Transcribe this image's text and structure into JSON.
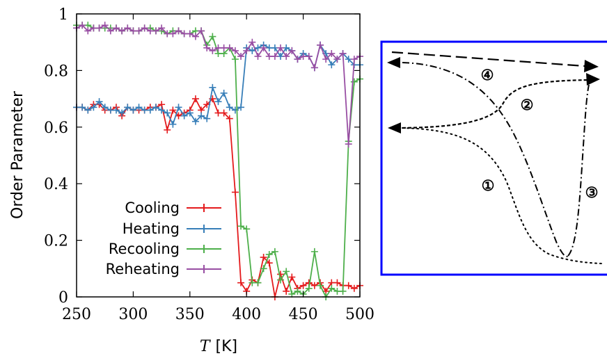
{
  "chart_data": {
    "type": "line",
    "xlabel_var": "T",
    "xlabel_unit": "[K]",
    "ylabel": "Order Parameter",
    "xlim": [
      250,
      500
    ],
    "ylim": [
      0,
      1
    ],
    "xticks": [
      "250",
      "300",
      "350",
      "400",
      "450",
      "500"
    ],
    "yticks": [
      "0",
      "0.2",
      "0.4",
      "0.6",
      "0.8",
      "1"
    ],
    "legend_position": "bottom-left",
    "grid": false,
    "x": [
      250,
      255,
      260,
      265,
      270,
      275,
      280,
      285,
      290,
      295,
      300,
      305,
      310,
      315,
      320,
      325,
      330,
      335,
      340,
      345,
      350,
      355,
      360,
      365,
      370,
      375,
      380,
      385,
      390,
      395,
      400,
      405,
      410,
      415,
      420,
      425,
      430,
      435,
      440,
      445,
      450,
      455,
      460,
      465,
      470,
      475,
      480,
      485,
      490,
      495,
      500
    ],
    "series": [
      {
        "name": "Cooling",
        "color": "#e41a1c",
        "values": [
          0.67,
          0.67,
          0.66,
          0.68,
          0.68,
          0.66,
          0.66,
          0.67,
          0.64,
          0.67,
          0.66,
          0.66,
          0.66,
          0.67,
          0.67,
          0.68,
          0.59,
          0.66,
          0.64,
          0.65,
          0.66,
          0.7,
          0.66,
          0.68,
          0.7,
          0.65,
          0.65,
          0.63,
          0.37,
          0.05,
          0.02,
          0.06,
          0.05,
          0.14,
          0.12,
          0.0,
          0.08,
          0.02,
          0.07,
          0.03,
          0.04,
          0.05,
          0.04,
          0.05,
          0.02,
          0.05,
          0.05,
          0.04,
          0.04,
          0.03,
          0.04
        ]
      },
      {
        "name": "Heating",
        "color": "#377eb8",
        "values": [
          0.67,
          0.67,
          0.66,
          0.67,
          0.69,
          0.67,
          0.66,
          0.66,
          0.65,
          0.67,
          0.66,
          0.67,
          0.66,
          0.66,
          0.67,
          0.66,
          0.65,
          0.61,
          0.67,
          0.64,
          0.65,
          0.62,
          0.64,
          0.63,
          0.74,
          0.69,
          0.72,
          0.67,
          0.66,
          0.67,
          0.88,
          0.87,
          0.88,
          0.89,
          0.88,
          0.88,
          0.85,
          0.88,
          0.87,
          0.84,
          0.86,
          0.85,
          0.81,
          0.89,
          0.86,
          0.82,
          0.84,
          0.86,
          0.84,
          0.82,
          0.82
        ]
      },
      {
        "name": "Recooling",
        "color": "#4daf4a",
        "values": [
          0.96,
          0.96,
          0.96,
          0.95,
          0.95,
          0.95,
          0.95,
          0.95,
          0.94,
          0.95,
          0.94,
          0.94,
          0.95,
          0.95,
          0.94,
          0.94,
          0.93,
          0.94,
          0.94,
          0.93,
          0.93,
          0.94,
          0.94,
          0.89,
          0.92,
          0.86,
          0.86,
          0.88,
          0.84,
          0.25,
          0.24,
          0.05,
          0.05,
          0.1,
          0.15,
          0.16,
          0.06,
          0.09,
          0.01,
          0.02,
          0.01,
          0.03,
          0.16,
          0.04,
          0.0,
          0.03,
          0.02,
          0.02,
          0.55,
          0.76,
          0.77
        ]
      },
      {
        "name": "Reheating",
        "color": "#984ea3",
        "values": [
          0.95,
          0.96,
          0.94,
          0.95,
          0.95,
          0.96,
          0.94,
          0.95,
          0.94,
          0.95,
          0.94,
          0.94,
          0.95,
          0.94,
          0.94,
          0.95,
          0.93,
          0.93,
          0.94,
          0.93,
          0.93,
          0.92,
          0.94,
          0.88,
          0.87,
          0.88,
          0.88,
          0.88,
          0.87,
          0.85,
          0.87,
          0.9,
          0.85,
          0.88,
          0.85,
          0.85,
          0.88,
          0.85,
          0.87,
          0.84,
          0.85,
          0.85,
          0.81,
          0.89,
          0.84,
          0.86,
          0.84,
          0.86,
          0.54,
          0.84,
          0.85
        ]
      }
    ],
    "schematic": {
      "frame_color": "#0000ff",
      "labels": [
        "①",
        "②",
        "③",
        "④"
      ]
    }
  }
}
